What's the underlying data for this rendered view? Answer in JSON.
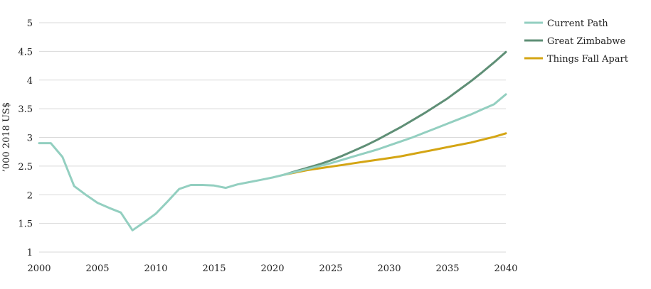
{
  "chart_data": {
    "type": "line",
    "title": "",
    "xlabel": "",
    "ylabel": "’000 2018 US$",
    "xlim": [
      2000,
      2040
    ],
    "ylim": [
      1,
      5
    ],
    "x_ticks": [
      2000,
      2005,
      2010,
      2015,
      2020,
      2025,
      2030,
      2035,
      2040
    ],
    "x_tick_labels": [
      "2000",
      "2005",
      "2010",
      "2015",
      "2020",
      "2025",
      "2030",
      "2035",
      "2040"
    ],
    "y_ticks": [
      1,
      1.5,
      2,
      2.5,
      3,
      3.5,
      4,
      4.5,
      5
    ],
    "y_tick_labels": [
      "1",
      "1.5",
      "2",
      "2.5",
      "3",
      "3.5",
      "4",
      "4.5",
      "5"
    ],
    "grid": "horizontal",
    "legend_position": "right",
    "series": [
      {
        "name": "Current Path",
        "color": "#93cfc0",
        "x": [
          2000,
          2001,
          2002,
          2003,
          2004,
          2005,
          2006,
          2007,
          2008,
          2009,
          2010,
          2011,
          2012,
          2013,
          2014,
          2015,
          2016,
          2017,
          2018,
          2019,
          2020,
          2021,
          2022,
          2023,
          2024,
          2025,
          2026,
          2027,
          2028,
          2029,
          2030,
          2031,
          2032,
          2033,
          2034,
          2035,
          2036,
          2037,
          2038,
          2039,
          2040
        ],
        "values": [
          2.9,
          2.9,
          2.66,
          2.15,
          2.0,
          1.86,
          1.77,
          1.69,
          1.38,
          1.52,
          1.67,
          1.88,
          2.1,
          2.17,
          2.17,
          2.16,
          2.12,
          2.18,
          2.22,
          2.26,
          2.3,
          2.35,
          2.4,
          2.45,
          2.5,
          2.55,
          2.61,
          2.67,
          2.73,
          2.79,
          2.86,
          2.93,
          3.0,
          3.08,
          3.16,
          3.24,
          3.32,
          3.4,
          3.49,
          3.58,
          3.75
        ]
      },
      {
        "name": "Great Zimbabwe",
        "color": "#5f8f76",
        "x": [
          2021,
          2022,
          2023,
          2024,
          2025,
          2026,
          2027,
          2028,
          2029,
          2030,
          2031,
          2032,
          2033,
          2034,
          2035,
          2036,
          2037,
          2038,
          2039,
          2040
        ],
        "values": [
          2.35,
          2.41,
          2.47,
          2.53,
          2.6,
          2.68,
          2.77,
          2.86,
          2.96,
          3.07,
          3.18,
          3.3,
          3.42,
          3.55,
          3.68,
          3.83,
          3.98,
          4.14,
          4.31,
          4.49
        ]
      },
      {
        "name": "Things Fall Apart",
        "color": "#d4a514",
        "x": [
          2021,
          2022,
          2023,
          2024,
          2025,
          2026,
          2027,
          2028,
          2029,
          2030,
          2031,
          2032,
          2033,
          2034,
          2035,
          2036,
          2037,
          2038,
          2039,
          2040
        ],
        "values": [
          2.35,
          2.39,
          2.43,
          2.46,
          2.49,
          2.52,
          2.55,
          2.58,
          2.61,
          2.64,
          2.67,
          2.71,
          2.75,
          2.79,
          2.83,
          2.87,
          2.91,
          2.96,
          3.01,
          3.07
        ]
      }
    ]
  }
}
